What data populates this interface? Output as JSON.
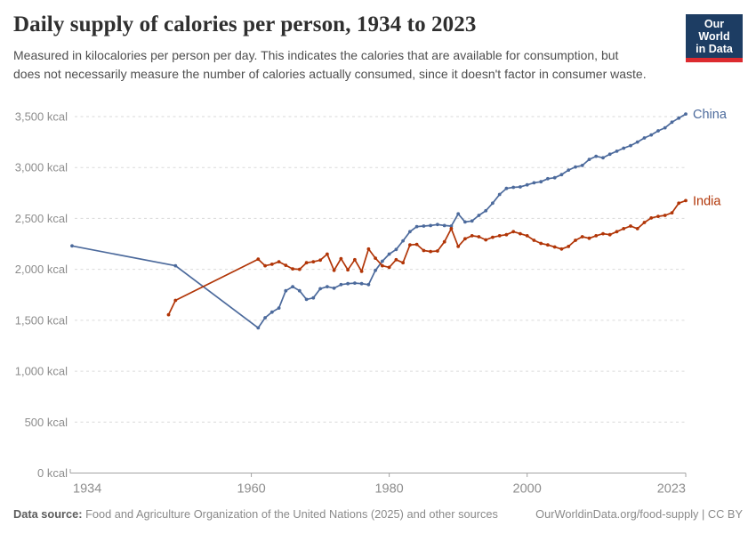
{
  "header": {
    "title": "Daily supply of calories per person, 1934 to 2023",
    "subtitle": "Measured in kilocalories per person per day. This indicates the calories that are available for consumption, but does not necessarily measure the number of calories actually consumed, since it doesn't factor in consumer waste.",
    "logo": {
      "line1": "Our World",
      "line2": "in Data",
      "bg_color": "#1d3d63",
      "bar_color": "#dc2a2f",
      "text_color": "#ffffff"
    }
  },
  "footer": {
    "datasource_label": "Data source:",
    "datasource_text": " Food and Agriculture Organization of the United Nations (2025) and other sources",
    "link_text": "OurWorldinData.org/food-supply | CC BY"
  },
  "chart_data": {
    "type": "line",
    "title": "Daily supply of calories per person, 1934 to 2023",
    "xlabel": "",
    "ylabel": "",
    "unit_suffix": " kcal",
    "xlim": [
      1934,
      2023
    ],
    "ylim": [
      0,
      3500
    ],
    "grid": "horizontal-dashed",
    "grid_color": "#dadada",
    "axis_color": "#a3a3a3",
    "tick_text_color": "#8d8d8d",
    "legend_position": "line-end-labels",
    "x_ticks": [
      1934,
      1960,
      1980,
      2000,
      2023
    ],
    "x_tick_labels": [
      "1934",
      "1960",
      "1980",
      "2000",
      "2023"
    ],
    "y_ticks": [
      0,
      500,
      1000,
      1500,
      2000,
      2500,
      3000,
      3500
    ],
    "y_tick_labels": [
      "0 kcal",
      "500 kcal",
      "1,000 kcal",
      "1,500 kcal",
      "2,000 kcal",
      "2,500 kcal",
      "3,000 kcal",
      "3,500 kcal"
    ],
    "series": [
      {
        "name": "China",
        "color": "#4C6A9C",
        "points": [
          [
            1934,
            2230
          ],
          [
            1949,
            2035
          ],
          [
            1961,
            1425
          ],
          [
            1962,
            1525
          ],
          [
            1963,
            1580
          ],
          [
            1964,
            1620
          ],
          [
            1965,
            1790
          ],
          [
            1966,
            1830
          ],
          [
            1967,
            1790
          ],
          [
            1968,
            1705
          ],
          [
            1969,
            1720
          ],
          [
            1970,
            1810
          ],
          [
            1971,
            1830
          ],
          [
            1972,
            1815
          ],
          [
            1973,
            1850
          ],
          [
            1974,
            1860
          ],
          [
            1975,
            1865
          ],
          [
            1976,
            1860
          ],
          [
            1977,
            1850
          ],
          [
            1978,
            1990
          ],
          [
            1979,
            2080
          ],
          [
            1980,
            2150
          ],
          [
            1981,
            2195
          ],
          [
            1982,
            2280
          ],
          [
            1983,
            2370
          ],
          [
            1984,
            2420
          ],
          [
            1985,
            2425
          ],
          [
            1986,
            2430
          ],
          [
            1987,
            2440
          ],
          [
            1988,
            2430
          ],
          [
            1989,
            2425
          ],
          [
            1990,
            2545
          ],
          [
            1991,
            2465
          ],
          [
            1992,
            2475
          ],
          [
            1993,
            2530
          ],
          [
            1994,
            2575
          ],
          [
            1995,
            2650
          ],
          [
            1996,
            2735
          ],
          [
            1997,
            2795
          ],
          [
            1998,
            2805
          ],
          [
            1999,
            2810
          ],
          [
            2000,
            2830
          ],
          [
            2001,
            2850
          ],
          [
            2002,
            2860
          ],
          [
            2003,
            2890
          ],
          [
            2004,
            2900
          ],
          [
            2005,
            2930
          ],
          [
            2006,
            2975
          ],
          [
            2007,
            3005
          ],
          [
            2008,
            3020
          ],
          [
            2009,
            3080
          ],
          [
            2010,
            3110
          ],
          [
            2011,
            3095
          ],
          [
            2012,
            3130
          ],
          [
            2013,
            3160
          ],
          [
            2014,
            3190
          ],
          [
            2015,
            3215
          ],
          [
            2016,
            3250
          ],
          [
            2017,
            3290
          ],
          [
            2018,
            3320
          ],
          [
            2019,
            3360
          ],
          [
            2020,
            3390
          ],
          [
            2021,
            3445
          ],
          [
            2022,
            3485
          ],
          [
            2023,
            3525
          ]
        ]
      },
      {
        "name": "India",
        "color": "#B13507",
        "points": [
          [
            1948,
            1555
          ],
          [
            1949,
            1695
          ],
          [
            1961,
            2100
          ],
          [
            1962,
            2035
          ],
          [
            1963,
            2050
          ],
          [
            1964,
            2075
          ],
          [
            1965,
            2040
          ],
          [
            1966,
            2005
          ],
          [
            1967,
            2000
          ],
          [
            1968,
            2065
          ],
          [
            1969,
            2075
          ],
          [
            1970,
            2090
          ],
          [
            1971,
            2150
          ],
          [
            1972,
            1990
          ],
          [
            1973,
            2105
          ],
          [
            1974,
            1995
          ],
          [
            1975,
            2095
          ],
          [
            1976,
            1980
          ],
          [
            1977,
            2200
          ],
          [
            1978,
            2110
          ],
          [
            1979,
            2035
          ],
          [
            1980,
            2020
          ],
          [
            1981,
            2095
          ],
          [
            1982,
            2065
          ],
          [
            1983,
            2240
          ],
          [
            1984,
            2245
          ],
          [
            1985,
            2185
          ],
          [
            1986,
            2175
          ],
          [
            1987,
            2180
          ],
          [
            1988,
            2270
          ],
          [
            1989,
            2400
          ],
          [
            1990,
            2225
          ],
          [
            1991,
            2300
          ],
          [
            1992,
            2330
          ],
          [
            1993,
            2320
          ],
          [
            1994,
            2290
          ],
          [
            1995,
            2315
          ],
          [
            1996,
            2330
          ],
          [
            1997,
            2340
          ],
          [
            1998,
            2370
          ],
          [
            1999,
            2350
          ],
          [
            2000,
            2330
          ],
          [
            2001,
            2285
          ],
          [
            2002,
            2255
          ],
          [
            2003,
            2240
          ],
          [
            2004,
            2220
          ],
          [
            2005,
            2200
          ],
          [
            2006,
            2225
          ],
          [
            2007,
            2285
          ],
          [
            2008,
            2320
          ],
          [
            2009,
            2305
          ],
          [
            2010,
            2330
          ],
          [
            2011,
            2350
          ],
          [
            2012,
            2340
          ],
          [
            2013,
            2370
          ],
          [
            2014,
            2400
          ],
          [
            2015,
            2425
          ],
          [
            2016,
            2400
          ],
          [
            2017,
            2460
          ],
          [
            2018,
            2505
          ],
          [
            2019,
            2520
          ],
          [
            2020,
            2530
          ],
          [
            2021,
            2555
          ],
          [
            2022,
            2650
          ],
          [
            2023,
            2675
          ]
        ]
      }
    ]
  }
}
